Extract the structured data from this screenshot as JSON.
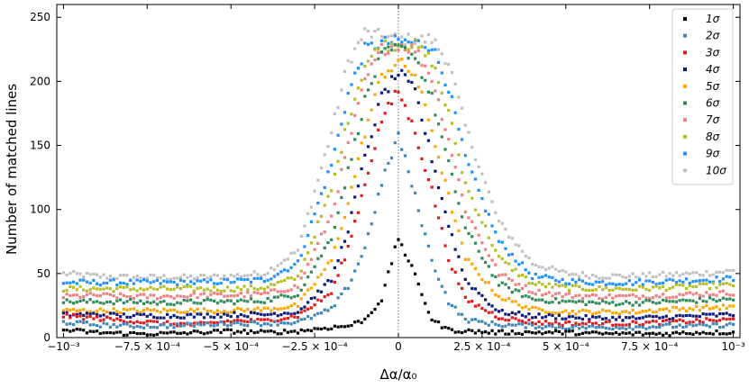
{
  "chart_data": {
    "type": "scatter",
    "title": "",
    "xlabel": "Δα/α₀",
    "ylabel": "Number of matched lines",
    "xlim": [
      -0.00102,
      0.00102
    ],
    "ylim": [
      0,
      260
    ],
    "xticks": [
      -0.001,
      -0.00075,
      -0.0005,
      -0.00025,
      0,
      0.00025,
      0.0005,
      0.00075,
      0.001
    ],
    "xtick_labels": [
      "−10⁻³",
      "−7.5 × 10⁻⁴",
      "−5 × 10⁻⁴",
      "−2.5 × 10⁻⁴",
      "0",
      "2.5 × 10⁻⁴",
      "5 × 10⁻⁴",
      "7.5 × 10⁻⁴",
      "10⁻³"
    ],
    "yticks": [
      0,
      50,
      100,
      150,
      200,
      250
    ],
    "ytick_labels": [
      "0",
      "50",
      "100",
      "150",
      "200",
      "250"
    ],
    "reference_line_x": 0,
    "legend_position": "top-right",
    "sample_x": [
      -0.001,
      -0.0009,
      -0.0008,
      -0.0007,
      -0.0006,
      -0.0005,
      -0.0004,
      -0.0003,
      -0.0002,
      -0.00015,
      -0.0001,
      -5e-05,
      0,
      5e-05,
      0.0001,
      0.00015,
      0.0002,
      0.0003,
      0.0004,
      0.0005,
      0.0006,
      0.0007,
      0.0008,
      0.0009,
      0.001
    ],
    "series": [
      {
        "name": "1σ",
        "color": "#000000",
        "values": [
          6,
          4,
          3,
          3,
          4,
          5,
          4,
          5,
          8,
          9,
          14,
          30,
          78,
          48,
          14,
          6,
          5,
          4,
          4,
          4,
          3,
          3,
          3,
          4,
          4
        ]
      },
      {
        "name": "2σ",
        "color": "#3d86b8",
        "values": [
          12,
          10,
          9,
          9,
          10,
          11,
          11,
          12,
          22,
          40,
          70,
          120,
          158,
          110,
          60,
          28,
          14,
          10,
          9,
          8,
          8,
          8,
          9,
          9,
          10
        ]
      },
      {
        "name": "3σ",
        "color": "#e31a1c",
        "values": [
          17,
          15,
          13,
          11,
          10,
          13,
          13,
          17,
          35,
          70,
          120,
          170,
          193,
          160,
          115,
          62,
          30,
          16,
          12,
          11,
          11,
          11,
          12,
          13,
          14
        ]
      },
      {
        "name": "4σ",
        "color": "#0b1a7a",
        "values": [
          18,
          18,
          17,
          17,
          17,
          18,
          18,
          20,
          45,
          85,
          140,
          188,
          207,
          192,
          140,
          88,
          45,
          20,
          17,
          16,
          15,
          15,
          16,
          17,
          18
        ]
      },
      {
        "name": "5σ",
        "color": "#ffa500",
        "values": [
          21,
          21,
          21,
          21,
          21,
          21,
          22,
          25,
          60,
          105,
          160,
          205,
          215,
          205,
          162,
          110,
          62,
          32,
          22,
          20,
          20,
          20,
          22,
          23,
          24
        ]
      },
      {
        "name": "6σ",
        "color": "#2e8b57",
        "values": [
          28,
          28,
          28,
          27,
          28,
          28,
          29,
          34,
          78,
          130,
          185,
          220,
          226,
          220,
          187,
          135,
          85,
          42,
          30,
          28,
          27,
          27,
          28,
          29,
          30
        ]
      },
      {
        "name": "7σ",
        "color": "#f08080",
        "values": [
          32,
          33,
          32,
          32,
          33,
          33,
          34,
          40,
          95,
          150,
          200,
          225,
          229,
          225,
          203,
          155,
          100,
          50,
          36,
          33,
          32,
          32,
          33,
          34,
          35
        ]
      },
      {
        "name": "8σ",
        "color": "#b5bd22",
        "values": [
          38,
          38,
          38,
          38,
          38,
          38,
          39,
          47,
          115,
          170,
          213,
          228,
          229,
          228,
          216,
          175,
          120,
          62,
          42,
          39,
          38,
          38,
          39,
          40,
          41
        ]
      },
      {
        "name": "9σ",
        "color": "#1e90ff",
        "values": [
          43,
          43,
          43,
          43,
          43,
          44,
          45,
          58,
          135,
          190,
          225,
          230,
          231,
          230,
          228,
          195,
          140,
          75,
          48,
          44,
          43,
          43,
          44,
          45,
          46
        ]
      },
      {
        "name": "10σ",
        "color": "#c0c0c0",
        "values": [
          50,
          48,
          47,
          47,
          47,
          48,
          50,
          68,
          160,
          215,
          238,
          235,
          233,
          232,
          233,
          215,
          165,
          90,
          58,
          50,
          48,
          48,
          49,
          50,
          52
        ]
      }
    ]
  }
}
